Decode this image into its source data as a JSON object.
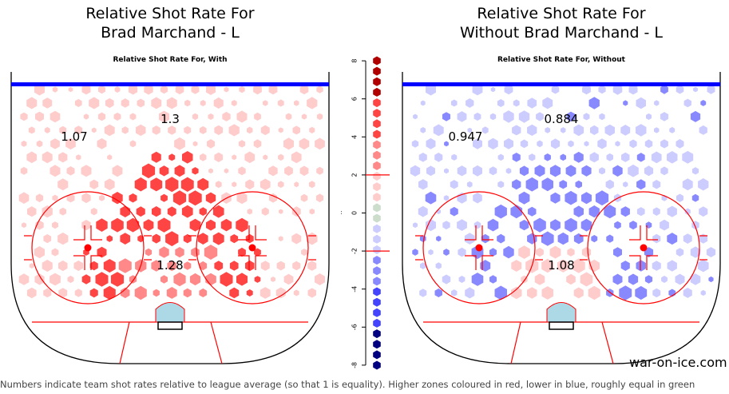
{
  "chart_data": {
    "type": "heatmap",
    "panels": [
      {
        "title_line1": "Relative Shot Rate For",
        "title_line2": "Brad Marchand - L",
        "subtitle": "Relative Shot Rate For, With",
        "zone_labels": [
          {
            "text": "1.3",
            "zone": "point"
          },
          {
            "text": "1.07",
            "zone": "left-wing"
          },
          {
            "text": "1.28",
            "zone": "slot"
          }
        ],
        "dominant": "red"
      },
      {
        "title_line1": "Relative Shot Rate For",
        "title_line2": "Without Brad Marchand - L",
        "subtitle": "Relative Shot Rate For, Without",
        "zone_labels": [
          {
            "text": "0.884",
            "zone": "point"
          },
          {
            "text": "0.947",
            "zone": "left-wing"
          },
          {
            "text": "1.08",
            "zone": "slot"
          }
        ],
        "dominant": "blue"
      }
    ],
    "legend": {
      "ylabel": "..",
      "ticks": [
        "8",
        "6",
        "4",
        "2",
        "0",
        "-2",
        "-4",
        "-6",
        "-8"
      ],
      "range": [
        -8,
        8
      ],
      "threshold_lines": [
        2,
        -2
      ],
      "bins": [
        {
          "min": 6,
          "color": "#b00000",
          "count": 4
        },
        {
          "min": 4,
          "color": "#ff4444",
          "count": 4
        },
        {
          "min": 2.5,
          "color": "#ff8888",
          "count": 3
        },
        {
          "min": 0.8,
          "color": "#ffcccc",
          "count": 3
        },
        {
          "min": -0.3,
          "color": "#ccddcc",
          "count": 2
        },
        {
          "min": -2,
          "color": "#ccccff",
          "count": 3
        },
        {
          "min": -3.6,
          "color": "#8888ff",
          "count": 3
        },
        {
          "min": -5.8,
          "color": "#4444ff",
          "count": 4
        },
        {
          "min": -8,
          "color": "#000080",
          "count": 4
        }
      ]
    }
  },
  "footer": "Numbers indicate team shot rates relative to league average (so that 1 is equality). Higher zones coloured in red, lower in blue, roughly equal in green",
  "watermark": "war-on-ice.com"
}
